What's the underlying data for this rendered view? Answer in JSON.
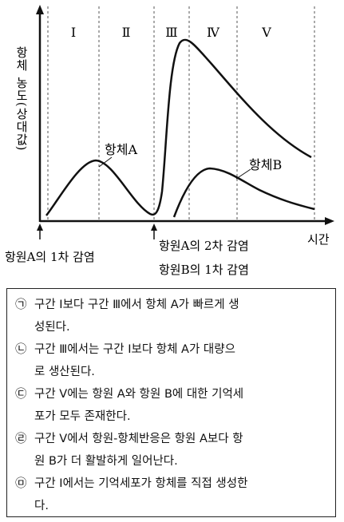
{
  "figure": {
    "y_axis_label": "항체 농도(상대값)",
    "x_axis_label": "시간",
    "intervals": [
      "Ⅰ",
      "Ⅱ",
      "Ⅲ",
      "Ⅳ",
      "Ⅴ"
    ],
    "curve_a_label": "항체A",
    "curve_b_label": "항체B",
    "event_1": "항원A의 1차 감염",
    "event_2_line1": "항원A의 2차 감염",
    "event_2_line2": "항원B의 1차 감염"
  },
  "statements": [
    {
      "mark": "㉠",
      "lines": [
        "구간 Ⅰ보다 구간 Ⅲ에서 항체 A가 빠르게 생",
        "성된다."
      ]
    },
    {
      "mark": "㉡",
      "lines": [
        "구간 Ⅲ에서는 구간 Ⅰ보다 항체 A가 대량으",
        "로 생산된다."
      ]
    },
    {
      "mark": "㉢",
      "lines": [
        "구간 Ⅴ에는 항원 A와 항원 B에 대한 기억세",
        "포가 모두 존재한다."
      ]
    },
    {
      "mark": "㉣",
      "lines": [
        "구간 Ⅴ에서 항원-항체반응은 항원 A보다 항",
        "원 B가 더 활발하게 일어난다."
      ]
    },
    {
      "mark": "㉤",
      "lines": [
        "구간 Ⅰ에서는 기억세포가 항체를 직접 생성한",
        "다."
      ]
    }
  ]
}
